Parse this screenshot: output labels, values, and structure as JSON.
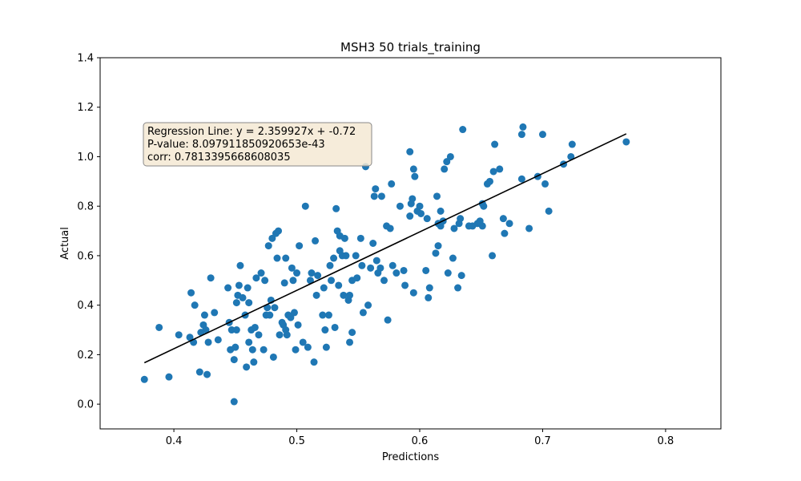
{
  "chart_data": {
    "type": "scatter",
    "title": "MSH3 50 trials_training",
    "xlabel": "Predictions",
    "ylabel": "Actual",
    "xlim": [
      0.34,
      0.845
    ],
    "ylim": [
      -0.1,
      1.4
    ],
    "xticks": [
      "0.4",
      "0.5",
      "0.6",
      "0.7",
      "0.8"
    ],
    "yticks": [
      "0.0",
      "0.2",
      "0.4",
      "0.6",
      "0.8",
      "1.0",
      "1.2",
      "1.4"
    ],
    "grid": false,
    "point_color": "#1f77b4",
    "line_color": "#000000",
    "annotation": {
      "lines": [
        "Regression Line: y = 2.359927x + -0.72",
        "P-value: 8.097911850920653e-43",
        "corr: 0.7813395668608035"
      ],
      "background": "#f5e9d3",
      "border": "#888888"
    },
    "regression_line": {
      "slope": 2.359927,
      "intercept": -0.72,
      "x_range": [
        0.376,
        0.768
      ]
    },
    "points": [
      [
        0.376,
        0.1
      ],
      [
        0.388,
        0.31
      ],
      [
        0.396,
        0.11
      ],
      [
        0.404,
        0.28
      ],
      [
        0.413,
        0.27
      ],
      [
        0.414,
        0.45
      ],
      [
        0.416,
        0.25
      ],
      [
        0.417,
        0.4
      ],
      [
        0.421,
        0.13
      ],
      [
        0.422,
        0.29
      ],
      [
        0.424,
        0.32
      ],
      [
        0.425,
        0.36
      ],
      [
        0.426,
        0.3
      ],
      [
        0.427,
        0.12
      ],
      [
        0.428,
        0.25
      ],
      [
        0.43,
        0.51
      ],
      [
        0.433,
        0.37
      ],
      [
        0.436,
        0.26
      ],
      [
        0.444,
        0.47
      ],
      [
        0.445,
        0.33
      ],
      [
        0.446,
        0.22
      ],
      [
        0.447,
        0.3
      ],
      [
        0.449,
        0.18
      ],
      [
        0.449,
        0.01
      ],
      [
        0.45,
        0.23
      ],
      [
        0.451,
        0.3
      ],
      [
        0.451,
        0.41
      ],
      [
        0.452,
        0.44
      ],
      [
        0.453,
        0.48
      ],
      [
        0.454,
        0.56
      ],
      [
        0.456,
        0.43
      ],
      [
        0.458,
        0.36
      ],
      [
        0.459,
        0.15
      ],
      [
        0.46,
        0.47
      ],
      [
        0.461,
        0.41
      ],
      [
        0.461,
        0.25
      ],
      [
        0.463,
        0.3
      ],
      [
        0.464,
        0.22
      ],
      [
        0.465,
        0.17
      ],
      [
        0.466,
        0.31
      ],
      [
        0.467,
        0.51
      ],
      [
        0.469,
        0.28
      ],
      [
        0.471,
        0.53
      ],
      [
        0.473,
        0.22
      ],
      [
        0.474,
        0.5
      ],
      [
        0.475,
        0.36
      ],
      [
        0.476,
        0.39
      ],
      [
        0.477,
        0.64
      ],
      [
        0.478,
        0.36
      ],
      [
        0.479,
        0.42
      ],
      [
        0.48,
        0.67
      ],
      [
        0.481,
        0.19
      ],
      [
        0.482,
        0.39
      ],
      [
        0.483,
        0.69
      ],
      [
        0.484,
        0.59
      ],
      [
        0.485,
        0.7
      ],
      [
        0.486,
        0.28
      ],
      [
        0.488,
        0.33
      ],
      [
        0.489,
        0.32
      ],
      [
        0.49,
        0.49
      ],
      [
        0.491,
        0.3
      ],
      [
        0.491,
        0.59
      ],
      [
        0.492,
        0.28
      ],
      [
        0.493,
        0.36
      ],
      [
        0.495,
        0.35
      ],
      [
        0.496,
        0.55
      ],
      [
        0.497,
        0.5
      ],
      [
        0.498,
        0.37
      ],
      [
        0.499,
        0.22
      ],
      [
        0.5,
        0.53
      ],
      [
        0.501,
        0.32
      ],
      [
        0.502,
        0.64
      ],
      [
        0.505,
        0.25
      ],
      [
        0.507,
        0.8
      ],
      [
        0.509,
        0.23
      ],
      [
        0.511,
        0.5
      ],
      [
        0.512,
        0.53
      ],
      [
        0.514,
        0.17
      ],
      [
        0.515,
        0.66
      ],
      [
        0.516,
        0.44
      ],
      [
        0.517,
        0.52
      ],
      [
        0.521,
        0.36
      ],
      [
        0.522,
        0.47
      ],
      [
        0.523,
        0.3
      ],
      [
        0.524,
        0.23
      ],
      [
        0.526,
        0.36
      ],
      [
        0.527,
        0.56
      ],
      [
        0.528,
        0.5
      ],
      [
        0.53,
        0.59
      ],
      [
        0.531,
        0.31
      ],
      [
        0.532,
        0.79
      ],
      [
        0.533,
        0.7
      ],
      [
        0.534,
        0.48
      ],
      [
        0.535,
        0.68
      ],
      [
        0.535,
        0.62
      ],
      [
        0.537,
        0.6
      ],
      [
        0.538,
        0.44
      ],
      [
        0.539,
        0.67
      ],
      [
        0.54,
        0.6
      ],
      [
        0.542,
        0.42
      ],
      [
        0.543,
        0.44
      ],
      [
        0.543,
        0.25
      ],
      [
        0.545,
        0.29
      ],
      [
        0.545,
        0.5
      ],
      [
        0.548,
        0.6
      ],
      [
        0.549,
        0.51
      ],
      [
        0.552,
        0.67
      ],
      [
        0.553,
        0.56
      ],
      [
        0.554,
        0.37
      ],
      [
        0.556,
        0.96
      ],
      [
        0.558,
        0.4
      ],
      [
        0.56,
        0.55
      ],
      [
        0.562,
        0.65
      ],
      [
        0.563,
        0.84
      ],
      [
        0.564,
        0.87
      ],
      [
        0.565,
        0.58
      ],
      [
        0.566,
        0.53
      ],
      [
        0.568,
        0.55
      ],
      [
        0.569,
        0.84
      ],
      [
        0.571,
        0.5
      ],
      [
        0.573,
        0.72
      ],
      [
        0.574,
        0.34
      ],
      [
        0.576,
        0.71
      ],
      [
        0.577,
        0.89
      ],
      [
        0.578,
        0.56
      ],
      [
        0.581,
        0.53
      ],
      [
        0.584,
        0.8
      ],
      [
        0.587,
        0.54
      ],
      [
        0.588,
        0.48
      ],
      [
        0.592,
        0.76
      ],
      [
        0.592,
        1.02
      ],
      [
        0.593,
        0.81
      ],
      [
        0.594,
        0.83
      ],
      [
        0.595,
        0.45
      ],
      [
        0.595,
        0.95
      ],
      [
        0.596,
        0.92
      ],
      [
        0.598,
        0.78
      ],
      [
        0.6,
        0.8
      ],
      [
        0.601,
        0.77
      ],
      [
        0.605,
        0.54
      ],
      [
        0.606,
        0.75
      ],
      [
        0.607,
        0.43
      ],
      [
        0.608,
        0.47
      ],
      [
        0.613,
        0.61
      ],
      [
        0.614,
        0.84
      ],
      [
        0.615,
        0.64
      ],
      [
        0.615,
        0.73
      ],
      [
        0.617,
        0.72
      ],
      [
        0.617,
        0.78
      ],
      [
        0.619,
        0.74
      ],
      [
        0.62,
        0.95
      ],
      [
        0.622,
        0.98
      ],
      [
        0.623,
        0.53
      ],
      [
        0.625,
        1.0
      ],
      [
        0.627,
        0.59
      ],
      [
        0.628,
        0.71
      ],
      [
        0.631,
        0.47
      ],
      [
        0.632,
        0.73
      ],
      [
        0.633,
        0.75
      ],
      [
        0.634,
        0.52
      ],
      [
        0.635,
        1.11
      ],
      [
        0.64,
        0.72
      ],
      [
        0.643,
        0.72
      ],
      [
        0.647,
        0.73
      ],
      [
        0.649,
        0.74
      ],
      [
        0.651,
        0.72
      ],
      [
        0.651,
        0.81
      ],
      [
        0.652,
        0.8
      ],
      [
        0.655,
        0.89
      ],
      [
        0.657,
        0.9
      ],
      [
        0.659,
        0.6
      ],
      [
        0.66,
        0.94
      ],
      [
        0.661,
        1.05
      ],
      [
        0.665,
        0.95
      ],
      [
        0.668,
        0.75
      ],
      [
        0.669,
        0.69
      ],
      [
        0.673,
        0.73
      ],
      [
        0.683,
        0.91
      ],
      [
        0.683,
        1.09
      ],
      [
        0.684,
        1.12
      ],
      [
        0.689,
        0.71
      ],
      [
        0.696,
        0.92
      ],
      [
        0.7,
        1.09
      ],
      [
        0.702,
        0.89
      ],
      [
        0.705,
        0.78
      ],
      [
        0.717,
        0.97
      ],
      [
        0.723,
        1.0
      ],
      [
        0.724,
        1.05
      ],
      [
        0.768,
        1.06
      ]
    ]
  }
}
